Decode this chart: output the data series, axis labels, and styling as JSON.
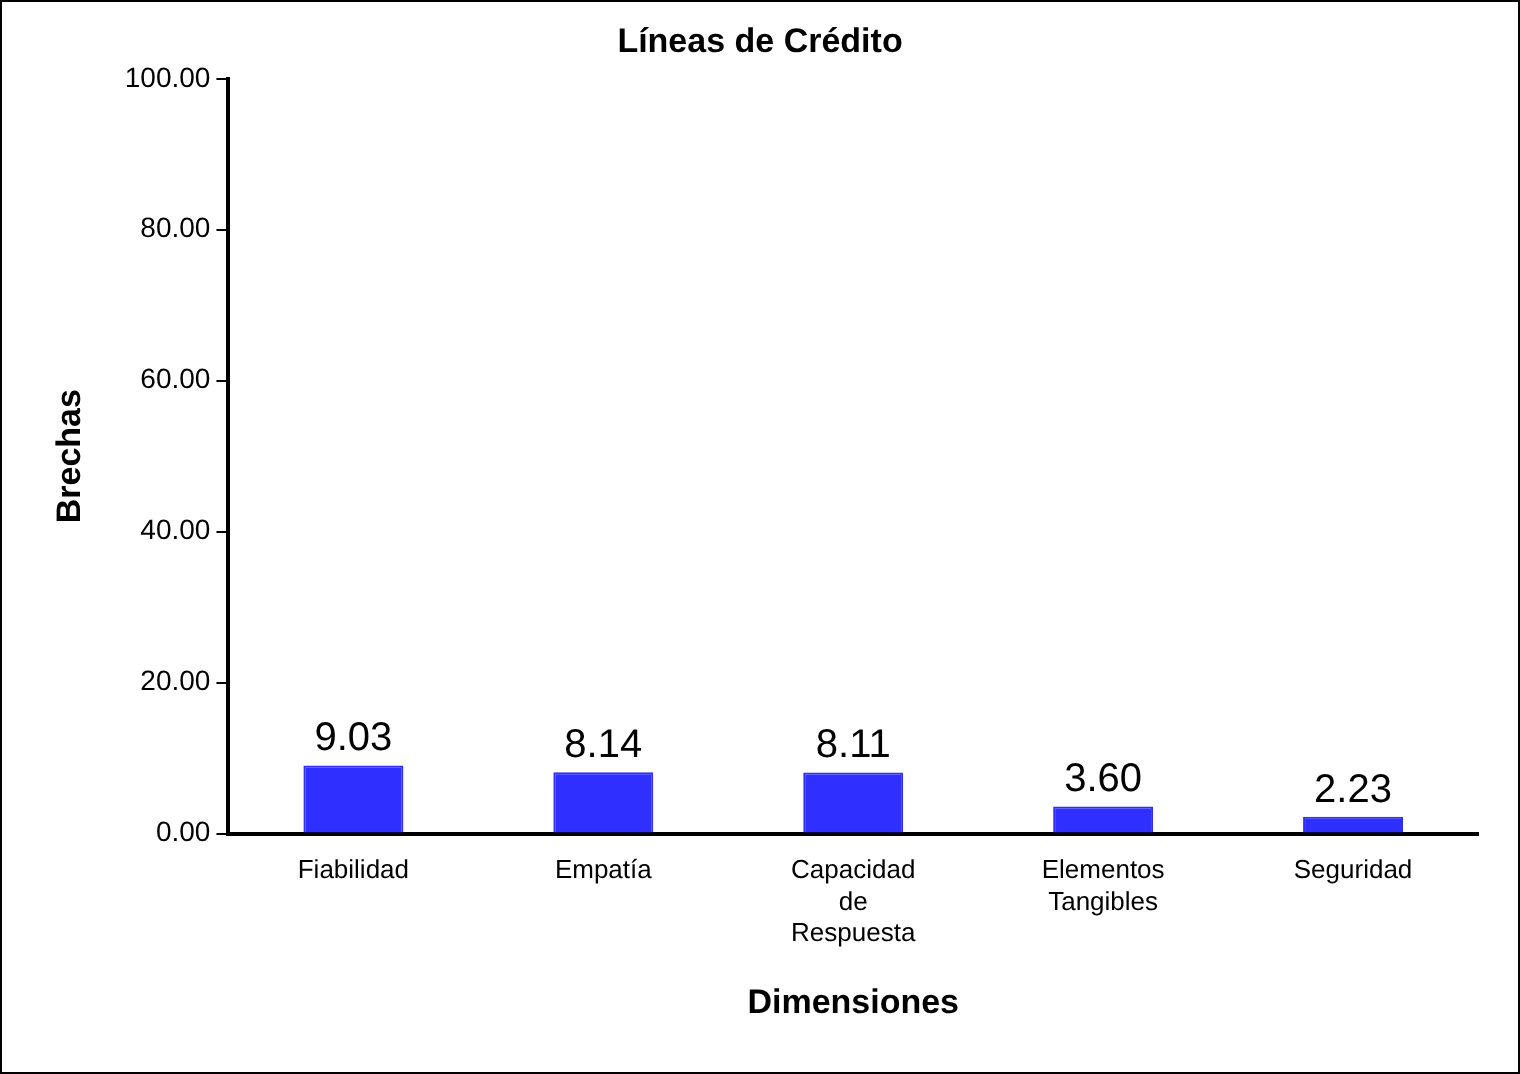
{
  "chart_data": {
    "type": "bar",
    "title": "Líneas de Crédito",
    "xlabel": "Dimensiones",
    "ylabel": "Brechas",
    "categories": [
      "Fiabilidad",
      "Empatía",
      "Capacidad de Respuesta",
      "Elementos Tangibles",
      "Seguridad"
    ],
    "values": [
      9.03,
      8.14,
      8.11,
      3.6,
      2.23
    ],
    "value_labels": [
      "9.03",
      "8.14",
      "8.11",
      "3.60",
      "2.23"
    ],
    "color": "#2f2fff",
    "ylim": [
      0,
      100
    ],
    "yticks": [
      {
        "value": 0,
        "label": "0.00"
      },
      {
        "value": 20,
        "label": "20.00"
      },
      {
        "value": 40,
        "label": "40.00"
      },
      {
        "value": 60,
        "label": "60.00"
      },
      {
        "value": 80,
        "label": "80.00"
      },
      {
        "value": 100,
        "label": "100.00"
      }
    ],
    "grid": false,
    "legend": false
  }
}
